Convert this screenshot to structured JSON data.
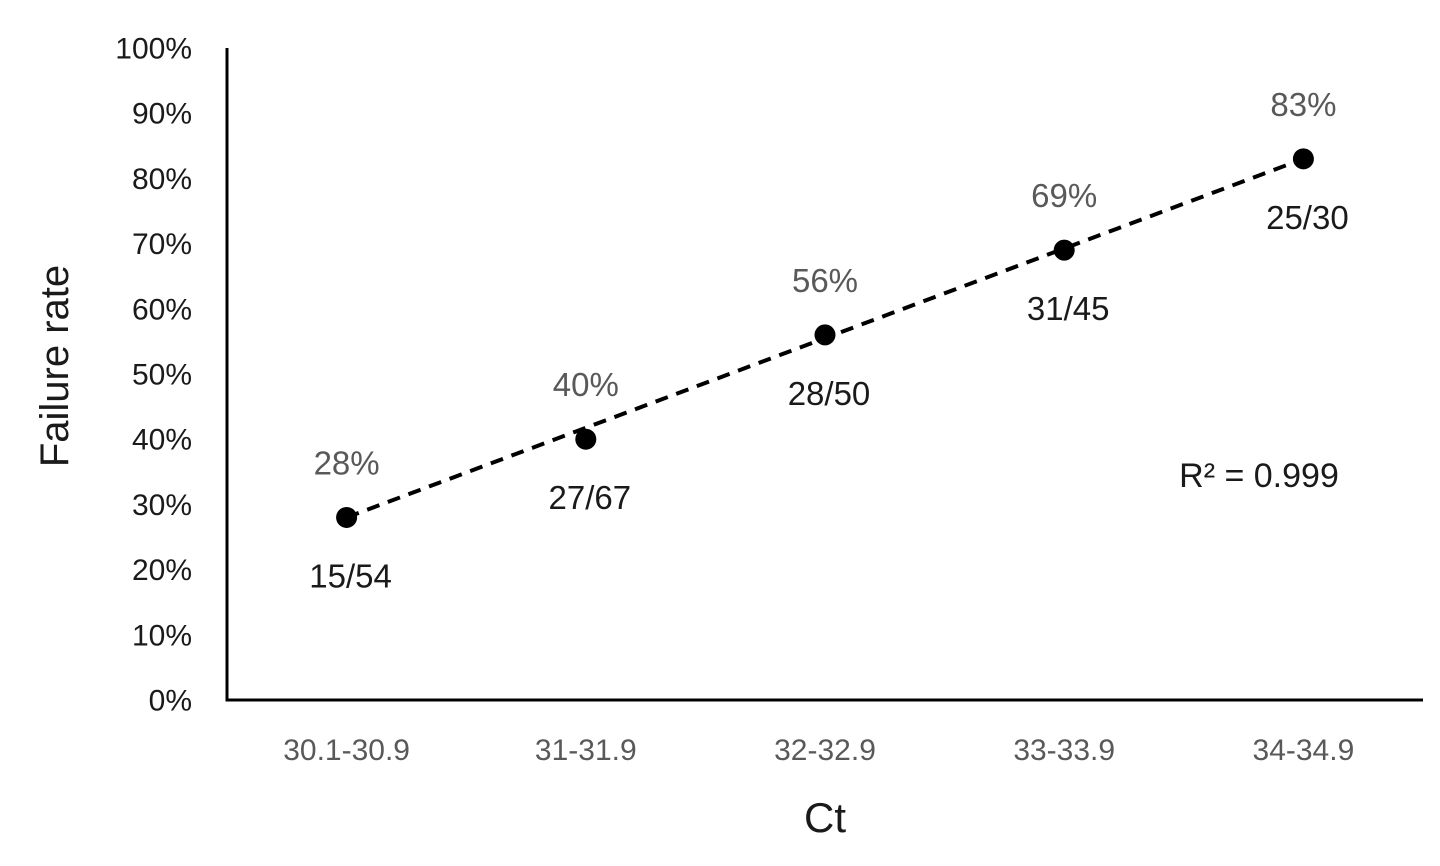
{
  "chart_data": {
    "type": "scatter",
    "title": "",
    "xlabel": "Ct",
    "ylabel": "Failure rate",
    "categories": [
      "30.1-30.9",
      "31-31.9",
      "32-32.9",
      "33-33.9",
      "34-34.9"
    ],
    "series": [
      {
        "name": "Failure rate",
        "values_percent": [
          28,
          40,
          56,
          69,
          83
        ],
        "point_percent_labels": [
          "28%",
          "40%",
          "56%",
          "69%",
          "83%"
        ],
        "point_fraction_labels": [
          "15/54",
          "27/67",
          "28/50",
          "31/45",
          "25/30"
        ]
      }
    ],
    "y_ticks": [
      "0%",
      "10%",
      "20%",
      "30%",
      "40%",
      "50%",
      "60%",
      "70%",
      "80%",
      "90%",
      "100%"
    ],
    "ylim": [
      0,
      100
    ],
    "annotation": "R² = 0.999",
    "trendline_style": "dashed",
    "legend": "none",
    "grid": "off",
    "colors": {
      "background": "#ffffff",
      "axis": "#000000",
      "point": "#000000",
      "trendline": "#000000",
      "percent_label": "#595959",
      "fraction_label": "#1a1a1a",
      "x_tick_label": "#595959",
      "y_tick_label": "#1a1a1a",
      "axis_title": "#1a1a1a",
      "annotation_color": "#1a1a1a"
    }
  }
}
